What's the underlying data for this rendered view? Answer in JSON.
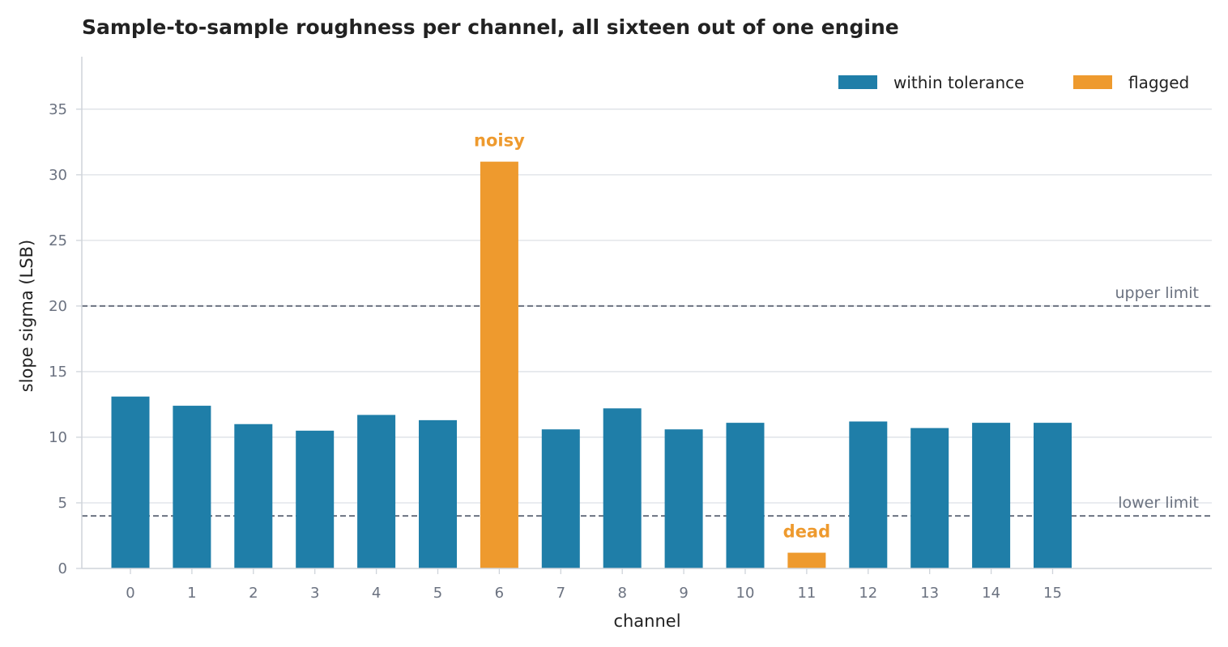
{
  "chart_data": {
    "type": "bar",
    "title": "Sample-to-sample roughness per channel, all sixteen out of one engine",
    "xlabel": "channel",
    "ylabel": "slope sigma (LSB)",
    "ylim": [
      0,
      39
    ],
    "yticks": [
      0,
      5,
      10,
      15,
      20,
      25,
      30,
      35
    ],
    "grid": true,
    "legend_position": "top-right",
    "categories": [
      "0",
      "1",
      "2",
      "3",
      "4",
      "5",
      "6",
      "7",
      "8",
      "9",
      "10",
      "11",
      "12",
      "13",
      "14",
      "15"
    ],
    "values": [
      13.1,
      12.4,
      11.0,
      10.5,
      11.7,
      11.3,
      31.0,
      10.6,
      12.2,
      10.6,
      11.1,
      1.2,
      11.2,
      10.7,
      11.1,
      11.1
    ],
    "status": [
      "within tolerance",
      "within tolerance",
      "within tolerance",
      "within tolerance",
      "within tolerance",
      "within tolerance",
      "flagged",
      "within tolerance",
      "within tolerance",
      "within tolerance",
      "within tolerance",
      "flagged",
      "within tolerance",
      "within tolerance",
      "within tolerance",
      "within tolerance"
    ],
    "legend": [
      {
        "name": "within tolerance",
        "color": "#1f7ea8"
      },
      {
        "name": "flagged",
        "color": "#ee9a2e"
      }
    ],
    "reference_lines": [
      {
        "label": "upper limit",
        "value": 20
      },
      {
        "label": "lower limit",
        "value": 4
      }
    ],
    "annotations": [
      {
        "text": "noisy",
        "category": "6",
        "value": 31.0
      },
      {
        "text": "dead",
        "category": "11",
        "value": 1.2
      }
    ],
    "colors": {
      "ok": "#1f7ea8",
      "flagged": "#ee9a2e",
      "reference": "#6b7280",
      "grid": "#dde1e6",
      "axis": "#cfd4da"
    }
  }
}
